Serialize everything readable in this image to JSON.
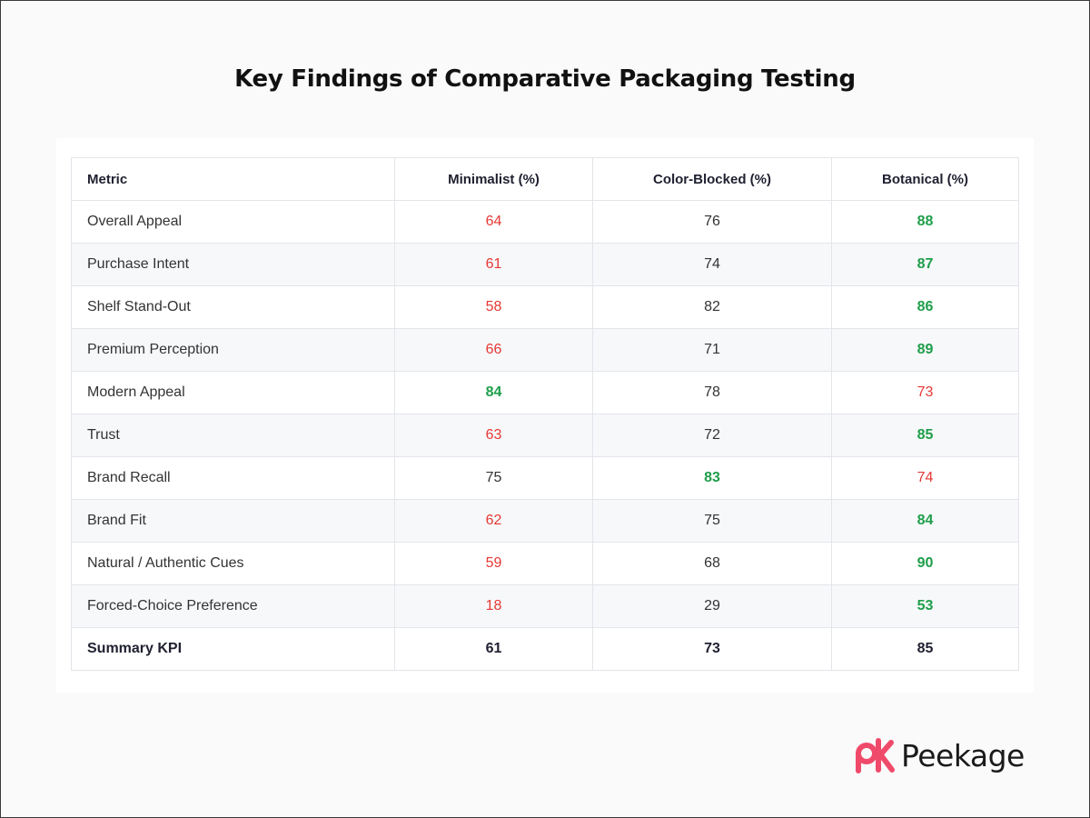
{
  "title": "Key Findings of Comparative Packaging Testing",
  "brand": {
    "name": "Peekage",
    "logo_color": "#f04a6b"
  },
  "colors": {
    "low": "#e53935",
    "high": "#1e9e4a",
    "neutral": "#333333"
  },
  "chart_data": {
    "type": "table",
    "columns": [
      "Metric",
      "Minimalist (%)",
      "Color-Blocked (%)",
      "Botanical (%)"
    ],
    "rows": [
      {
        "metric": "Overall Appeal",
        "values": [
          64,
          76,
          88
        ],
        "styles": [
          "low",
          "mid",
          "high"
        ]
      },
      {
        "metric": "Purchase Intent",
        "values": [
          61,
          74,
          87
        ],
        "styles": [
          "low",
          "mid",
          "high"
        ]
      },
      {
        "metric": "Shelf Stand-Out",
        "values": [
          58,
          82,
          86
        ],
        "styles": [
          "low",
          "mid",
          "high"
        ]
      },
      {
        "metric": "Premium Perception",
        "values": [
          66,
          71,
          89
        ],
        "styles": [
          "low",
          "mid",
          "high"
        ]
      },
      {
        "metric": "Modern Appeal",
        "values": [
          84,
          78,
          73
        ],
        "styles": [
          "high",
          "mid",
          "low"
        ]
      },
      {
        "metric": "Trust",
        "values": [
          63,
          72,
          85
        ],
        "styles": [
          "low",
          "mid",
          "high"
        ]
      },
      {
        "metric": "Brand Recall",
        "values": [
          75,
          83,
          74
        ],
        "styles": [
          "mid",
          "high",
          "low"
        ]
      },
      {
        "metric": "Brand Fit",
        "values": [
          62,
          75,
          84
        ],
        "styles": [
          "low",
          "mid",
          "high"
        ]
      },
      {
        "metric": "Natural / Authentic Cues",
        "values": [
          59,
          68,
          90
        ],
        "styles": [
          "low",
          "mid",
          "high"
        ]
      },
      {
        "metric": "Forced-Choice Preference",
        "values": [
          18,
          29,
          53
        ],
        "styles": [
          "low",
          "mid",
          "high"
        ]
      },
      {
        "metric": "Summary KPI",
        "values": [
          61,
          73,
          85
        ],
        "styles": [
          "low",
          "mid",
          "high"
        ],
        "summary": true
      }
    ]
  }
}
